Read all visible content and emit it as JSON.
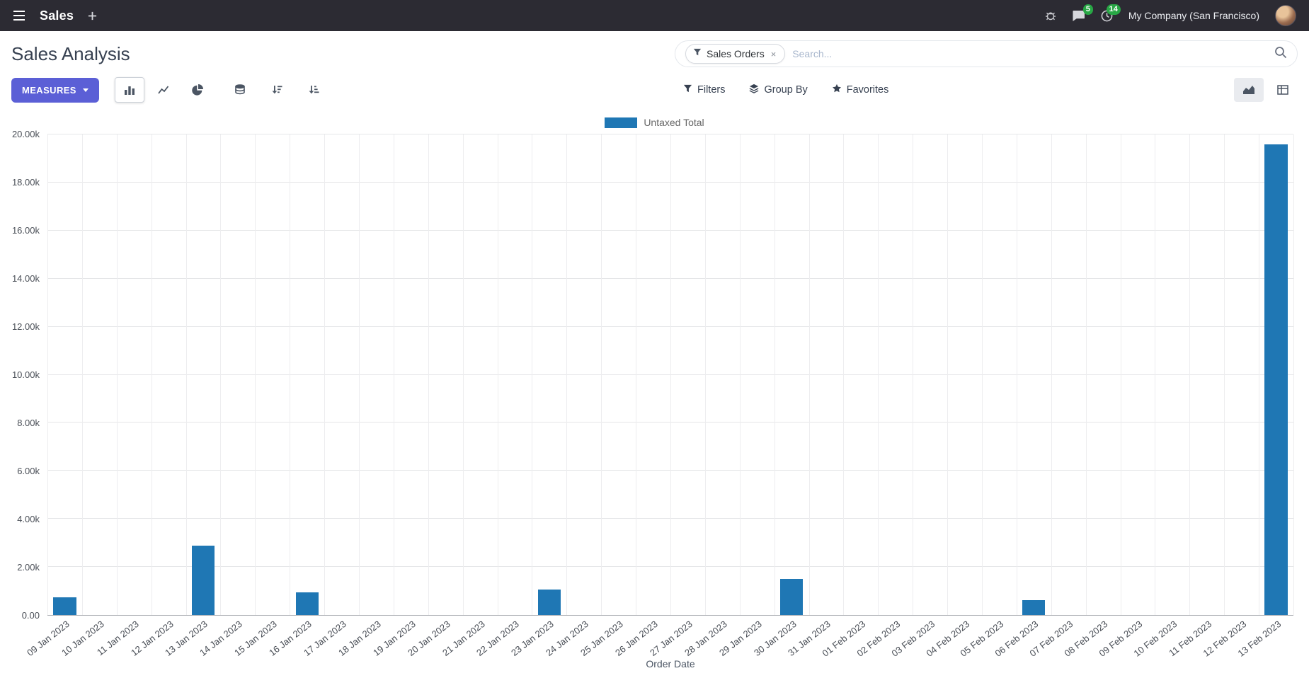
{
  "navbar": {
    "app_name": "Sales",
    "company": "My Company (San Francisco)",
    "badges": {
      "messages": "5",
      "activities": "14"
    }
  },
  "control_panel": {
    "title": "Sales Analysis",
    "measures_button": "MEASURES",
    "filters": "Filters",
    "group_by": "Group By",
    "favorites": "Favorites",
    "search": {
      "facet_label": "Sales Orders",
      "facet_remove": "×",
      "placeholder": "Search..."
    }
  },
  "chart_data": {
    "type": "bar",
    "title": "",
    "legend": [
      "Untaxed Total"
    ],
    "legend_position": "top-center",
    "grid": true,
    "xlabel": "Order Date",
    "ylabel": "",
    "ylim": [
      0,
      20000
    ],
    "ytick_step": 2000,
    "ytick_labels": [
      "0.00",
      "2.00k",
      "4.00k",
      "6.00k",
      "8.00k",
      "10.00k",
      "12.00k",
      "14.00k",
      "16.00k",
      "18.00k",
      "20.00k"
    ],
    "categories": [
      "09 Jan 2023",
      "10 Jan 2023",
      "11 Jan 2023",
      "12 Jan 2023",
      "13 Jan 2023",
      "14 Jan 2023",
      "15 Jan 2023",
      "16 Jan 2023",
      "17 Jan 2023",
      "18 Jan 2023",
      "19 Jan 2023",
      "20 Jan 2023",
      "21 Jan 2023",
      "22 Jan 2023",
      "23 Jan 2023",
      "24 Jan 2023",
      "25 Jan 2023",
      "26 Jan 2023",
      "27 Jan 2023",
      "28 Jan 2023",
      "29 Jan 2023",
      "30 Jan 2023",
      "31 Jan 2023",
      "01 Feb 2023",
      "02 Feb 2023",
      "03 Feb 2023",
      "04 Feb 2023",
      "05 Feb 2023",
      "06 Feb 2023",
      "07 Feb 2023",
      "08 Feb 2023",
      "09 Feb 2023",
      "10 Feb 2023",
      "11 Feb 2023",
      "12 Feb 2023",
      "13 Feb 2023"
    ],
    "series": [
      {
        "name": "Untaxed Total",
        "color": "#1f77b4",
        "values": [
          750,
          0,
          0,
          0,
          2900,
          0,
          0,
          950,
          0,
          0,
          0,
          0,
          0,
          0,
          1050,
          0,
          0,
          0,
          0,
          0,
          0,
          1500,
          0,
          0,
          0,
          0,
          0,
          0,
          620,
          0,
          0,
          0,
          0,
          0,
          0,
          19600
        ]
      }
    ]
  },
  "colors": {
    "navbar_bg": "#2c2b33",
    "primary": "#5b5fd6",
    "badge": "#28a745",
    "bar": "#1f77b4"
  }
}
